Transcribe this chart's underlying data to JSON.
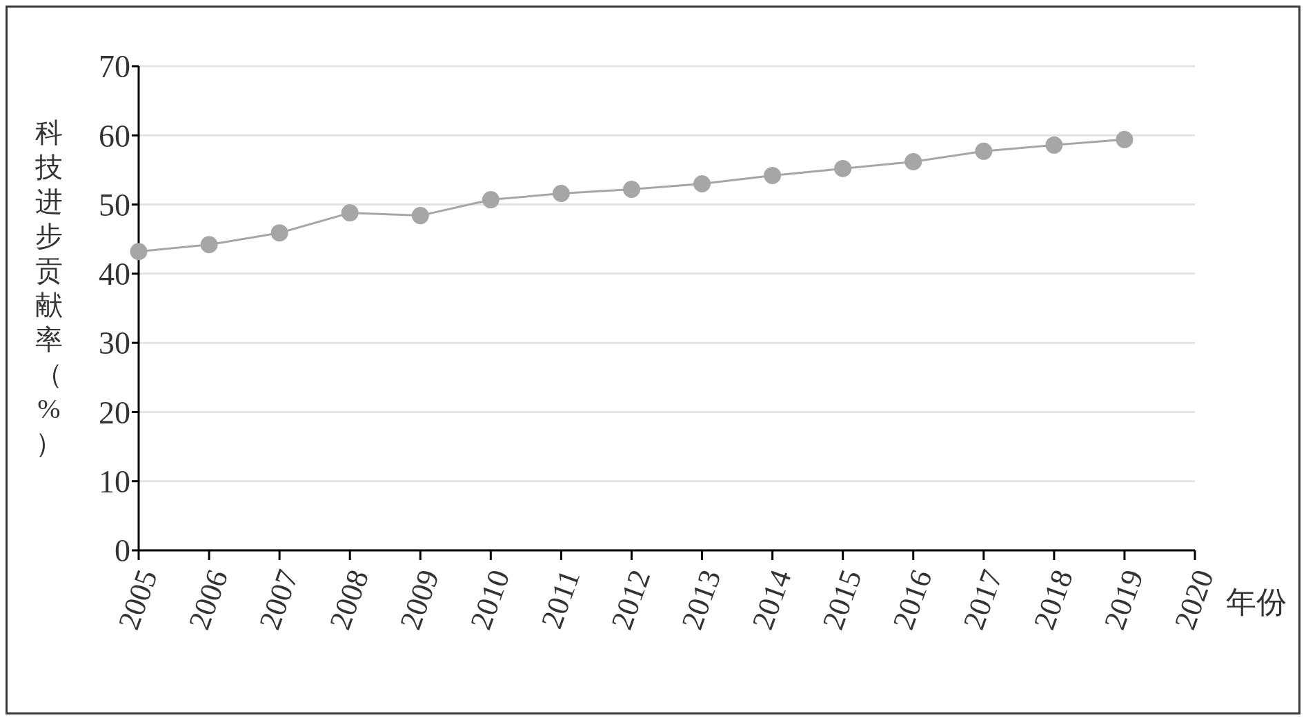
{
  "chart_data": {
    "type": "line",
    "xlabel": "年份",
    "ylabel": "科技进步贡献率（%）",
    "categories": [
      "2005",
      "2006",
      "2007",
      "2008",
      "2009",
      "2010",
      "2011",
      "2012",
      "2013",
      "2014",
      "2015",
      "2016",
      "2017",
      "2018",
      "2019",
      "2020"
    ],
    "series": [
      {
        "color": "#a6a6a6",
        "values": [
          43.2,
          44.2,
          45.9,
          48.8,
          48.4,
          50.7,
          51.6,
          52.2,
          53.0,
          54.2,
          55.2,
          56.2,
          57.7,
          58.6,
          59.4,
          null
        ]
      }
    ],
    "ylim": [
      0,
      70
    ],
    "yticks": [
      0,
      10,
      20,
      30,
      40,
      50,
      60,
      70
    ],
    "grid": "y",
    "marker": "circle",
    "line_style": "solid"
  }
}
